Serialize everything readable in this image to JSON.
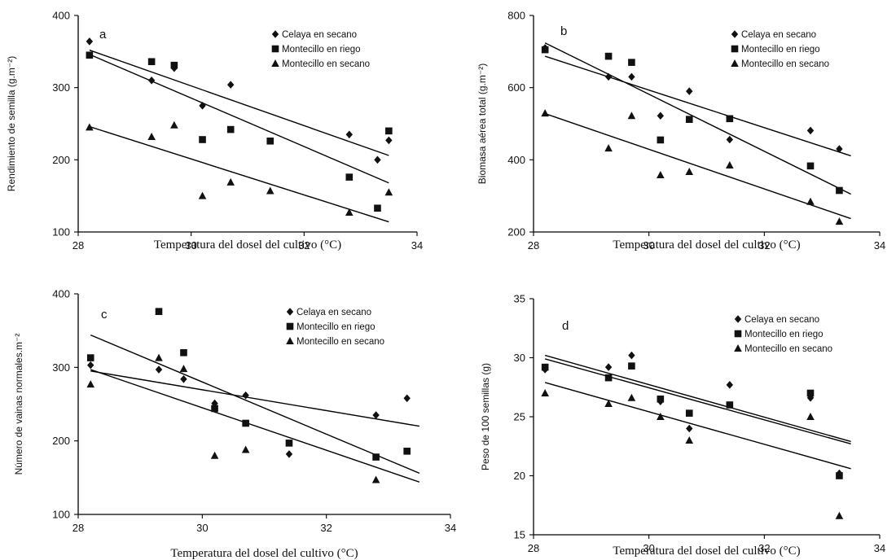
{
  "chart_data": [
    {
      "type": "scatter",
      "panel_label": "a",
      "xlabel": "Temperatura del dosel del cultivo (°C)",
      "ylabel": "Rendimiento de semilla (g.m⁻²)",
      "xlim": [
        28,
        34
      ],
      "ylim": [
        100,
        400
      ],
      "xticks": [
        28,
        30,
        32,
        34
      ],
      "yticks": [
        100,
        200,
        300,
        400
      ],
      "grid": false,
      "legend_position": "top-right",
      "series": [
        {
          "name": "Celaya en secano",
          "marker": "diamond",
          "x": [
            28.2,
            29.3,
            29.7,
            30.2,
            30.7,
            32.8,
            33.3,
            33.5
          ],
          "y": [
            364,
            310,
            327,
            275,
            304,
            235,
            200,
            227
          ],
          "fit": {
            "x": [
              28.2,
              33.5
            ],
            "y": [
              352,
              206
            ]
          }
        },
        {
          "name": "Montecillo en riego",
          "marker": "square",
          "x": [
            28.2,
            29.3,
            29.7,
            30.2,
            30.7,
            31.4,
            32.8,
            33.3,
            33.5
          ],
          "y": [
            345,
            336,
            331,
            228,
            242,
            226,
            176,
            133,
            240
          ],
          "fit": {
            "x": [
              28.2,
              33.5
            ],
            "y": [
              346,
              168
            ]
          }
        },
        {
          "name": "Montecillo en secano",
          "marker": "triangle",
          "x": [
            28.2,
            29.3,
            29.7,
            30.2,
            30.7,
            31.4,
            32.8,
            33.5
          ],
          "y": [
            245,
            232,
            248,
            150,
            169,
            157,
            127,
            155
          ],
          "fit": {
            "x": [
              28.2,
              33.5
            ],
            "y": [
              246,
              114
            ]
          }
        }
      ]
    },
    {
      "type": "scatter",
      "panel_label": "b",
      "xlabel": "Temperatura del dosel del cultivo (°C)",
      "ylabel": "Biomasa aérea total (g.m⁻²)",
      "xlim": [
        28,
        34
      ],
      "ylim": [
        200,
        800
      ],
      "xticks": [
        28,
        30,
        32,
        34
      ],
      "yticks": [
        200,
        400,
        600,
        800
      ],
      "grid": false,
      "legend_position": "top-right",
      "series": [
        {
          "name": "Celaya en secano",
          "marker": "diamond",
          "x": [
            28.2,
            29.3,
            29.7,
            30.2,
            30.7,
            31.4,
            32.8,
            33.3
          ],
          "y": [
            710,
            630,
            630,
            522,
            590,
            456,
            481,
            430
          ],
          "fit": {
            "x": [
              28.2,
              33.5
            ],
            "y": [
              687,
              411
            ]
          }
        },
        {
          "name": "Montecillo en riego",
          "marker": "square",
          "x": [
            28.2,
            29.3,
            29.7,
            30.2,
            30.7,
            31.4,
            32.8,
            33.3
          ],
          "y": [
            705,
            687,
            670,
            455,
            512,
            514,
            383,
            315
          ],
          "fit": {
            "x": [
              28.2,
              33.5
            ],
            "y": [
              724,
              305
            ]
          }
        },
        {
          "name": "Montecillo en secano",
          "marker": "triangle",
          "x": [
            28.2,
            29.3,
            29.7,
            30.2,
            30.7,
            31.4,
            32.8,
            33.3
          ],
          "y": [
            529,
            432,
            522,
            358,
            367,
            385,
            284,
            229
          ],
          "fit": {
            "x": [
              28.2,
              33.5
            ],
            "y": [
              528,
              237
            ]
          }
        }
      ]
    },
    {
      "type": "scatter",
      "panel_label": "c",
      "xlabel": "Temperatura del dosel del cultivo (°C)",
      "ylabel": "Número de vainas normales.m⁻²",
      "xlim": [
        28,
        34
      ],
      "ylim": [
        100,
        400
      ],
      "xticks": [
        28,
        30,
        32,
        34
      ],
      "yticks": [
        100,
        200,
        300,
        400
      ],
      "grid": false,
      "legend_position": "top-right",
      "series": [
        {
          "name": "Celaya en secano",
          "marker": "diamond",
          "x": [
            28.2,
            29.3,
            29.7,
            30.2,
            30.7,
            31.4,
            32.8,
            33.3
          ],
          "y": [
            303,
            297,
            284,
            251,
            262,
            182,
            235,
            258
          ],
          "fit": {
            "x": [
              28.2,
              33.5
            ],
            "y": [
              295,
              220
            ]
          }
        },
        {
          "name": "Montecillo en riego",
          "marker": "square",
          "x": [
            28.2,
            29.3,
            29.7,
            30.2,
            30.7,
            31.4,
            32.8,
            33.3
          ],
          "y": [
            313,
            376,
            320,
            244,
            224,
            197,
            178,
            186
          ],
          "fit": {
            "x": [
              28.2,
              33.5
            ],
            "y": [
              344,
              156
            ]
          }
        },
        {
          "name": "Montecillo en secano",
          "marker": "triangle",
          "x": [
            28.2,
            29.3,
            29.7,
            30.2,
            30.7,
            32.8
          ],
          "y": [
            277,
            313,
            298,
            180,
            188,
            147
          ],
          "fit": {
            "x": [
              28.2,
              33.5
            ],
            "y": [
              297,
              144
            ]
          }
        }
      ]
    },
    {
      "type": "scatter",
      "panel_label": "d",
      "xlabel": "Temperatura del dosel del cultivo (°C)",
      "ylabel": "Peso de 100 semillas (g)",
      "xlim": [
        28,
        34
      ],
      "ylim": [
        15,
        35
      ],
      "xticks": [
        28,
        30,
        32,
        34
      ],
      "yticks": [
        15,
        20,
        25,
        30,
        35
      ],
      "grid": false,
      "legend_position": "top-right",
      "series": [
        {
          "name": "Celaya en secano",
          "marker": "diamond",
          "x": [
            28.2,
            29.3,
            29.7,
            30.2,
            30.7,
            31.4,
            32.8,
            33.3
          ],
          "y": [
            29.0,
            29.2,
            30.2,
            26.3,
            24.0,
            27.7,
            26.6,
            20.2
          ],
          "fit": {
            "x": [
              28.2,
              33.5
            ],
            "y": [
              30.2,
              22.9
            ]
          }
        },
        {
          "name": "Montecillo en riego",
          "marker": "square",
          "x": [
            28.2,
            29.3,
            29.7,
            30.2,
            30.7,
            31.4,
            32.8,
            33.3
          ],
          "y": [
            29.2,
            28.3,
            29.3,
            26.5,
            25.3,
            26.0,
            27.0,
            20.0
          ],
          "fit": {
            "x": [
              28.2,
              33.5
            ],
            "y": [
              29.9,
              22.7
            ]
          }
        },
        {
          "name": "Montecillo en secano",
          "marker": "triangle",
          "x": [
            28.2,
            29.3,
            29.7,
            30.2,
            30.7,
            32.8,
            33.3
          ],
          "y": [
            27.0,
            26.1,
            26.6,
            25.0,
            23.0,
            25.0,
            16.6
          ],
          "fit": {
            "x": [
              28.2,
              33.5
            ],
            "y": [
              27.9,
              20.6
            ]
          }
        }
      ]
    }
  ]
}
